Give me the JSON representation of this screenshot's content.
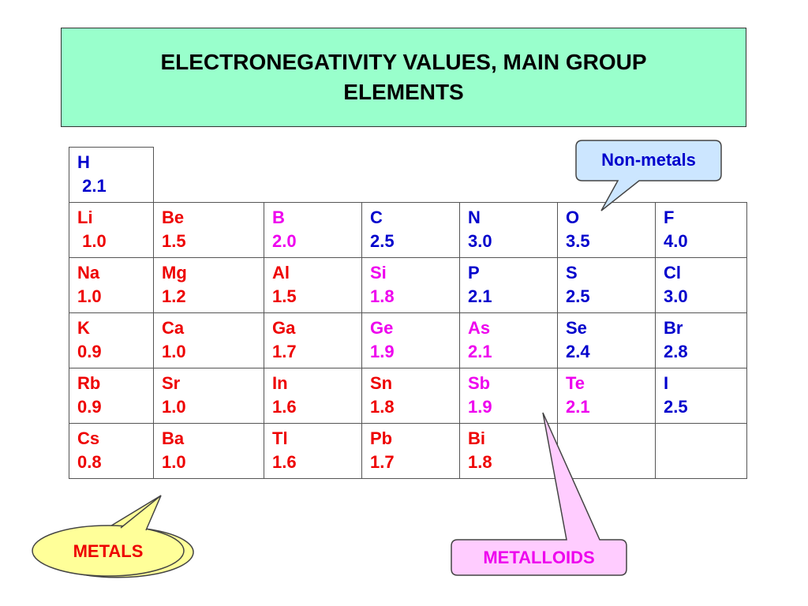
{
  "title": "ELECTRONEGATIVITY VALUES, MAIN GROUP ELEMENTS",
  "colors": {
    "title_background": "#99ffcc",
    "metal": "#ee0000",
    "metalloid": "#ee00ee",
    "nonmetal": "#0000cc",
    "nonmetals_callout_fill": "#cce6ff",
    "metals_callout_fill": "#ffff99",
    "metalloids_callout_fill": "#ffccff"
  },
  "rows": [
    [
      {
        "symbol": "H",
        "en": " 2.1",
        "type": "nonmetal"
      }
    ],
    [
      {
        "symbol": "Li",
        "en": " 1.0",
        "type": "metal"
      },
      {
        "symbol": "Be",
        "en": "1.5",
        "type": "metal"
      },
      {
        "symbol": "B",
        "en": "2.0",
        "type": "metalloid"
      },
      {
        "symbol": "C",
        "en": "2.5",
        "type": "nonmetal"
      },
      {
        "symbol": "N",
        "en": "3.0",
        "type": "nonmetal"
      },
      {
        "symbol": "O",
        "en": "3.5",
        "type": "nonmetal"
      },
      {
        "symbol": "F",
        "en": "4.0",
        "type": "nonmetal"
      }
    ],
    [
      {
        "symbol": "Na",
        "en": "1.0",
        "type": "metal"
      },
      {
        "symbol": "Mg",
        "en": "1.2",
        "type": "metal"
      },
      {
        "symbol": "Al",
        "en": "1.5",
        "type": "metal"
      },
      {
        "symbol": "Si",
        "en": "1.8",
        "type": "metalloid"
      },
      {
        "symbol": "P",
        "en": "2.1",
        "type": "nonmetal"
      },
      {
        "symbol": "S",
        "en": "2.5",
        "type": "nonmetal"
      },
      {
        "symbol": "Cl",
        "en": "3.0",
        "type": "nonmetal"
      }
    ],
    [
      {
        "symbol": "K",
        "en": "0.9",
        "type": "metal"
      },
      {
        "symbol": "Ca",
        "en": "1.0",
        "type": "metal"
      },
      {
        "symbol": "Ga",
        "en": "1.7",
        "type": "metal"
      },
      {
        "symbol": "Ge",
        "en": "1.9",
        "type": "metalloid"
      },
      {
        "symbol": "As",
        "en": "2.1",
        "type": "metalloid"
      },
      {
        "symbol": "Se",
        "en": "2.4",
        "type": "nonmetal"
      },
      {
        "symbol": "Br",
        "en": "2.8",
        "type": "nonmetal"
      }
    ],
    [
      {
        "symbol": "Rb",
        "en": "0.9",
        "type": "metal"
      },
      {
        "symbol": "Sr",
        "en": "1.0",
        "type": "metal"
      },
      {
        "symbol": "In",
        "en": "1.6",
        "type": "metal"
      },
      {
        "symbol": "Sn",
        "en": "1.8",
        "type": "metal"
      },
      {
        "symbol": "Sb",
        "en": "1.9",
        "type": "metalloid"
      },
      {
        "symbol": "Te",
        "en": "2.1",
        "type": "metalloid"
      },
      {
        "symbol": "I",
        "en": "2.5",
        "type": "nonmetal"
      }
    ],
    [
      {
        "symbol": "Cs",
        "en": "0.8",
        "type": "metal"
      },
      {
        "symbol": "Ba",
        "en": "1.0",
        "type": "metal"
      },
      {
        "symbol": "Tl",
        "en": "1.6",
        "type": "metal"
      },
      {
        "symbol": "Pb",
        "en": "1.7",
        "type": "metal"
      },
      {
        "symbol": "Bi",
        "en": "1.8",
        "type": "metal"
      },
      null,
      null
    ]
  ],
  "callouts": {
    "nonmetals": "Non-metals",
    "metals": "METALS",
    "metalloids": "METALLOIDS"
  }
}
